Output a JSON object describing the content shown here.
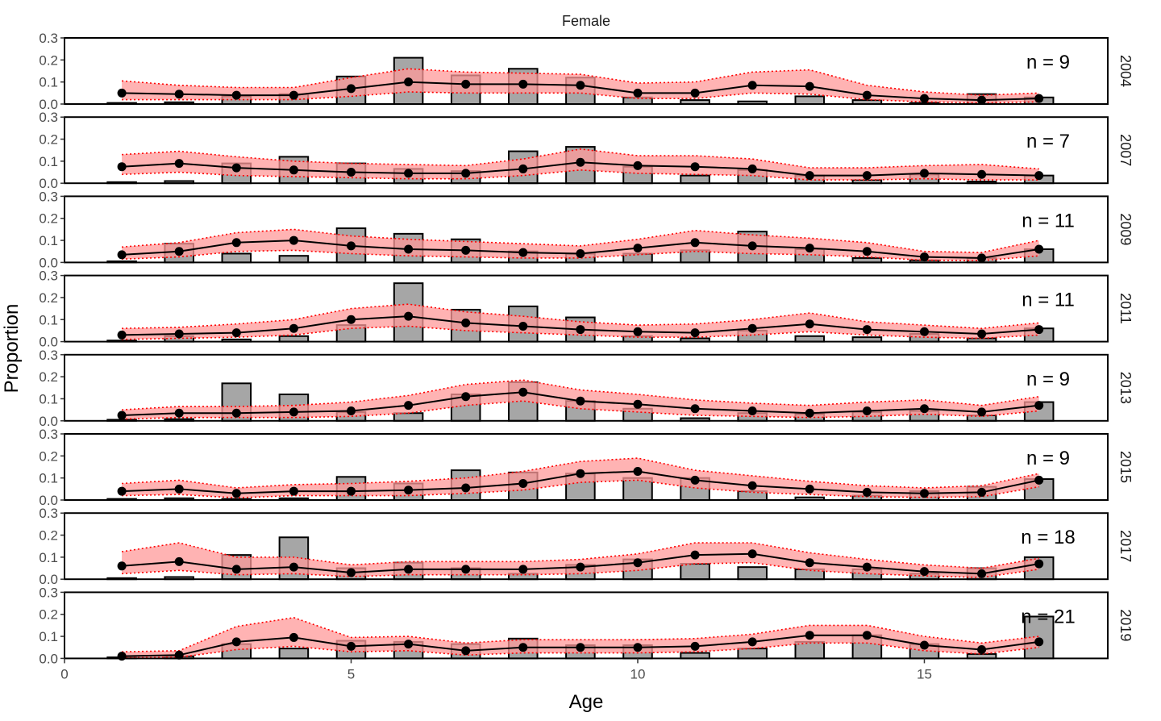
{
  "chart_data": {
    "type": "bar",
    "title": "Female",
    "xlabel": "Age",
    "ylabel": "Proportion",
    "xlim": [
      0,
      18.2
    ],
    "ylim": [
      0,
      0.3
    ],
    "x_ticks": [
      0,
      5,
      10,
      15
    ],
    "y_ticks": [
      "0.0",
      "0.1",
      "0.2",
      "0.3"
    ],
    "ages": [
      1,
      2,
      3,
      4,
      5,
      6,
      7,
      8,
      9,
      10,
      11,
      12,
      13,
      14,
      15,
      16,
      17
    ],
    "colors": {
      "bar": "#a6a6a6",
      "band": "#ff9999",
      "band_edge": "#ff0000",
      "line": "#000000"
    },
    "panels": [
      {
        "strip": "2004",
        "n_label": "n = 9",
        "observed": [
          0.005,
          0.008,
          0.035,
          0.045,
          0.125,
          0.21,
          0.13,
          0.16,
          0.12,
          0.03,
          0.018,
          0.012,
          0.035,
          0.018,
          0.005,
          0.045,
          0.03
        ],
        "predicted": [
          0.05,
          0.045,
          0.04,
          0.04,
          0.07,
          0.1,
          0.09,
          0.09,
          0.085,
          0.05,
          0.05,
          0.085,
          0.08,
          0.04,
          0.025,
          0.018,
          0.025
        ],
        "lower": [
          0.02,
          0.02,
          0.02,
          0.02,
          0.035,
          0.055,
          0.05,
          0.05,
          0.05,
          0.025,
          0.025,
          0.05,
          0.045,
          0.02,
          0.01,
          0.005,
          0.01
        ],
        "upper": [
          0.105,
          0.085,
          0.075,
          0.075,
          0.12,
          0.16,
          0.145,
          0.14,
          0.135,
          0.095,
          0.1,
          0.145,
          0.155,
          0.085,
          0.055,
          0.04,
          0.05
        ]
      },
      {
        "strip": "2007",
        "n_label": "n = 7",
        "observed": [
          0.005,
          0.01,
          0.09,
          0.12,
          0.09,
          0.065,
          0.055,
          0.145,
          0.165,
          0.075,
          0.035,
          0.06,
          0.035,
          0.015,
          0.04,
          0.008,
          0.035
        ],
        "predicted": [
          0.075,
          0.09,
          0.07,
          0.06,
          0.05,
          0.045,
          0.045,
          0.065,
          0.095,
          0.08,
          0.075,
          0.065,
          0.035,
          0.035,
          0.045,
          0.04,
          0.035
        ],
        "lower": [
          0.04,
          0.05,
          0.035,
          0.03,
          0.025,
          0.02,
          0.02,
          0.035,
          0.06,
          0.045,
          0.04,
          0.035,
          0.015,
          0.015,
          0.02,
          0.015,
          0.015
        ],
        "upper": [
          0.13,
          0.145,
          0.12,
          0.1,
          0.09,
          0.085,
          0.08,
          0.11,
          0.155,
          0.125,
          0.125,
          0.11,
          0.07,
          0.07,
          0.08,
          0.085,
          0.065
        ]
      },
      {
        "strip": "2009",
        "n_label": "n = 11",
        "observed": [
          0.005,
          0.085,
          0.04,
          0.03,
          0.155,
          0.13,
          0.105,
          0.05,
          0.04,
          0.04,
          0.055,
          0.14,
          0.06,
          0.02,
          0.01,
          0.02,
          0.06
        ],
        "predicted": [
          0.035,
          0.05,
          0.09,
          0.1,
          0.075,
          0.06,
          0.055,
          0.045,
          0.04,
          0.065,
          0.09,
          0.075,
          0.065,
          0.05,
          0.025,
          0.02,
          0.06
        ],
        "lower": [
          0.015,
          0.025,
          0.05,
          0.055,
          0.04,
          0.03,
          0.025,
          0.02,
          0.02,
          0.035,
          0.05,
          0.04,
          0.035,
          0.025,
          0.01,
          0.008,
          0.03
        ],
        "upper": [
          0.07,
          0.09,
          0.135,
          0.15,
          0.12,
          0.105,
          0.095,
          0.085,
          0.075,
          0.105,
          0.145,
          0.125,
          0.11,
          0.09,
          0.05,
          0.045,
          0.1
        ]
      },
      {
        "strip": "2011",
        "n_label": "n = 11",
        "observed": [
          0.005,
          0.025,
          0.01,
          0.025,
          0.075,
          0.265,
          0.145,
          0.16,
          0.11,
          0.025,
          0.015,
          0.05,
          0.025,
          0.02,
          0.035,
          0.015,
          0.06
        ],
        "predicted": [
          0.03,
          0.035,
          0.04,
          0.06,
          0.1,
          0.115,
          0.085,
          0.07,
          0.055,
          0.045,
          0.04,
          0.06,
          0.08,
          0.055,
          0.045,
          0.035,
          0.055
        ],
        "lower": [
          0.01,
          0.015,
          0.02,
          0.03,
          0.06,
          0.07,
          0.05,
          0.04,
          0.03,
          0.02,
          0.02,
          0.03,
          0.045,
          0.03,
          0.02,
          0.015,
          0.03
        ],
        "upper": [
          0.06,
          0.065,
          0.08,
          0.1,
          0.15,
          0.17,
          0.135,
          0.115,
          0.09,
          0.075,
          0.08,
          0.1,
          0.13,
          0.09,
          0.075,
          0.06,
          0.085
        ]
      },
      {
        "strip": "2013",
        "n_label": "n = 9",
        "observed": [
          0.005,
          0.008,
          0.17,
          0.12,
          0.04,
          0.035,
          0.12,
          0.175,
          0.09,
          0.055,
          0.012,
          0.035,
          0.03,
          0.04,
          0.045,
          0.025,
          0.085
        ],
        "predicted": [
          0.025,
          0.035,
          0.035,
          0.04,
          0.045,
          0.07,
          0.11,
          0.13,
          0.09,
          0.075,
          0.055,
          0.045,
          0.035,
          0.045,
          0.055,
          0.04,
          0.07
        ],
        "lower": [
          0.008,
          0.015,
          0.015,
          0.015,
          0.02,
          0.035,
          0.07,
          0.09,
          0.055,
          0.04,
          0.025,
          0.02,
          0.015,
          0.02,
          0.03,
          0.02,
          0.045
        ],
        "upper": [
          0.05,
          0.065,
          0.065,
          0.07,
          0.085,
          0.115,
          0.165,
          0.185,
          0.14,
          0.12,
          0.095,
          0.08,
          0.07,
          0.085,
          0.095,
          0.07,
          0.11
        ]
      },
      {
        "strip": "2015",
        "n_label": "n = 9",
        "observed": [
          0.005,
          0.008,
          0.005,
          0.008,
          0.105,
          0.075,
          0.135,
          0.125,
          0.12,
          0.1,
          0.1,
          0.04,
          0.012,
          0.02,
          0.04,
          0.06,
          0.095
        ],
        "predicted": [
          0.04,
          0.05,
          0.03,
          0.04,
          0.04,
          0.045,
          0.055,
          0.075,
          0.12,
          0.13,
          0.09,
          0.065,
          0.05,
          0.035,
          0.03,
          0.035,
          0.09
        ],
        "lower": [
          0.02,
          0.025,
          0.01,
          0.02,
          0.02,
          0.02,
          0.03,
          0.045,
          0.08,
          0.09,
          0.055,
          0.035,
          0.025,
          0.015,
          0.012,
          0.015,
          0.06
        ],
        "upper": [
          0.075,
          0.09,
          0.055,
          0.07,
          0.075,
          0.085,
          0.1,
          0.13,
          0.175,
          0.19,
          0.135,
          0.11,
          0.085,
          0.065,
          0.055,
          0.065,
          0.12
        ]
      },
      {
        "strip": "2017",
        "n_label": "n = 18",
        "observed": [
          0.005,
          0.01,
          0.11,
          0.19,
          0.05,
          0.075,
          0.05,
          0.025,
          0.065,
          0.09,
          0.07,
          0.055,
          0.045,
          0.045,
          0.025,
          0.05,
          0.1
        ],
        "predicted": [
          0.06,
          0.08,
          0.045,
          0.055,
          0.03,
          0.045,
          0.045,
          0.045,
          0.055,
          0.075,
          0.11,
          0.115,
          0.075,
          0.055,
          0.035,
          0.025,
          0.07
        ],
        "lower": [
          0.025,
          0.04,
          0.02,
          0.025,
          0.012,
          0.02,
          0.02,
          0.02,
          0.025,
          0.04,
          0.07,
          0.075,
          0.04,
          0.025,
          0.015,
          0.008,
          0.045
        ],
        "upper": [
          0.125,
          0.165,
          0.1,
          0.1,
          0.065,
          0.08,
          0.08,
          0.08,
          0.09,
          0.115,
          0.165,
          0.165,
          0.12,
          0.09,
          0.065,
          0.05,
          0.095
        ]
      },
      {
        "strip": "2019",
        "n_label": "n = 21",
        "observed": [
          0.005,
          0.01,
          0.065,
          0.045,
          0.08,
          0.075,
          0.065,
          0.09,
          0.06,
          0.06,
          0.025,
          0.045,
          0.075,
          0.105,
          0.065,
          0.02,
          0.19
        ],
        "predicted": [
          0.01,
          0.015,
          0.075,
          0.095,
          0.055,
          0.065,
          0.035,
          0.05,
          0.05,
          0.05,
          0.055,
          0.075,
          0.105,
          0.105,
          0.06,
          0.04,
          0.075
        ],
        "lower": [
          0.003,
          0.005,
          0.04,
          0.055,
          0.03,
          0.035,
          0.015,
          0.025,
          0.025,
          0.025,
          0.03,
          0.045,
          0.07,
          0.07,
          0.035,
          0.02,
          0.05
        ],
        "upper": [
          0.03,
          0.035,
          0.145,
          0.185,
          0.095,
          0.1,
          0.07,
          0.085,
          0.085,
          0.085,
          0.09,
          0.11,
          0.15,
          0.15,
          0.1,
          0.07,
          0.1
        ]
      }
    ]
  }
}
